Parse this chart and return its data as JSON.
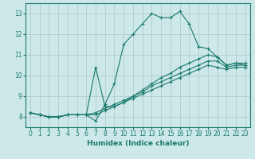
{
  "xlabel": "Humidex (Indice chaleur)",
  "ylabel": "",
  "background_color": "#cde8e8",
  "grid_color": "#b0cccc",
  "line_color": "#1a7a6e",
  "xlim": [
    -0.5,
    23.5
  ],
  "ylim": [
    7.5,
    13.5
  ],
  "xticks": [
    0,
    1,
    2,
    3,
    4,
    5,
    6,
    7,
    8,
    9,
    10,
    11,
    12,
    13,
    14,
    15,
    16,
    17,
    18,
    19,
    20,
    21,
    22,
    23
  ],
  "yticks": [
    8,
    9,
    10,
    11,
    12,
    13
  ],
  "lines": [
    {
      "x": [
        0,
        1,
        2,
        3,
        4,
        5,
        6,
        7,
        8,
        9,
        10,
        11,
        12,
        13,
        14,
        15,
        16,
        17,
        18,
        19,
        20,
        21,
        22,
        23
      ],
      "y": [
        8.2,
        8.1,
        8.0,
        8.0,
        8.1,
        8.1,
        8.1,
        7.8,
        8.6,
        9.6,
        11.5,
        12.0,
        12.5,
        13.0,
        12.8,
        12.8,
        13.1,
        12.5,
        11.4,
        11.3,
        10.9,
        10.5,
        10.6,
        10.6
      ]
    },
    {
      "x": [
        0,
        1,
        2,
        3,
        4,
        5,
        6,
        7,
        8,
        9,
        10,
        11,
        12,
        13,
        14,
        15,
        16,
        17,
        18,
        19,
        20,
        21,
        22,
        23
      ],
      "y": [
        8.2,
        8.1,
        8.0,
        8.0,
        8.1,
        8.1,
        8.1,
        10.4,
        8.5,
        8.5,
        8.7,
        9.0,
        9.3,
        9.6,
        9.9,
        10.1,
        10.4,
        10.6,
        10.8,
        11.0,
        10.9,
        10.5,
        10.6,
        10.5
      ]
    },
    {
      "x": [
        0,
        1,
        2,
        3,
        4,
        5,
        6,
        7,
        8,
        9,
        10,
        11,
        12,
        13,
        14,
        15,
        16,
        17,
        18,
        19,
        20,
        21,
        22,
        23
      ],
      "y": [
        8.2,
        8.1,
        8.0,
        8.0,
        8.1,
        8.1,
        8.1,
        8.2,
        8.4,
        8.6,
        8.8,
        9.0,
        9.2,
        9.5,
        9.7,
        9.9,
        10.1,
        10.3,
        10.5,
        10.7,
        10.7,
        10.4,
        10.5,
        10.5
      ]
    },
    {
      "x": [
        0,
        1,
        2,
        3,
        4,
        5,
        6,
        7,
        8,
        9,
        10,
        11,
        12,
        13,
        14,
        15,
        16,
        17,
        18,
        19,
        20,
        21,
        22,
        23
      ],
      "y": [
        8.2,
        8.1,
        8.0,
        8.0,
        8.1,
        8.1,
        8.1,
        8.1,
        8.3,
        8.5,
        8.7,
        8.9,
        9.1,
        9.3,
        9.5,
        9.7,
        9.9,
        10.1,
        10.3,
        10.5,
        10.4,
        10.3,
        10.4,
        10.4
      ]
    }
  ]
}
